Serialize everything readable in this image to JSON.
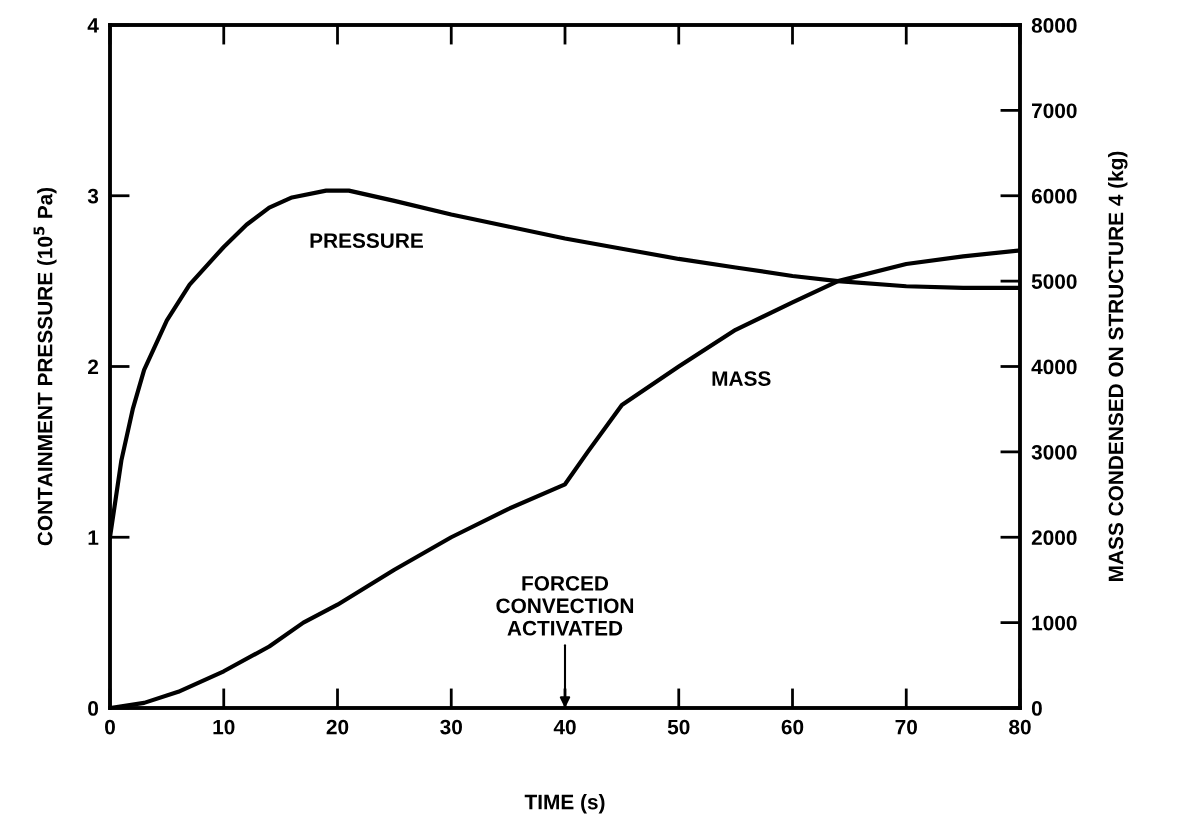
{
  "chart_data": {
    "type": "line",
    "xlabel": "TIME (s)",
    "ylabel": "CONTAINMENT PRESSURE (10$^{5}$ Pa)",
    "y2label": "MASS CONDENSED ON STRUCTURE 4 (kg)",
    "xlim": [
      0,
      80
    ],
    "xticks": [
      0,
      10,
      20,
      30,
      40,
      50,
      60,
      70,
      80
    ],
    "ylim": [
      0,
      4
    ],
    "yticks": [
      0,
      1,
      2,
      3,
      4
    ],
    "y2lim": [
      0,
      8000
    ],
    "y2ticks": [
      0,
      1000,
      2000,
      3000,
      4000,
      5000,
      6000,
      7000,
      8000
    ],
    "grid": false,
    "legend": false,
    "marker": "none",
    "line_style": "solid",
    "annotations": [
      "FORCED\nCONVECTION\nACTIVATED"
    ],
    "series": [
      {
        "name": "PRESSURE",
        "color": "#000000",
        "x": [
          0,
          1,
          2,
          3,
          5,
          7,
          10,
          12,
          14,
          16,
          19,
          21,
          25,
          30,
          35,
          40,
          45,
          50,
          55,
          60,
          64,
          70,
          75,
          80
        ],
        "values": [
          1.0,
          1.45,
          1.75,
          1.98,
          2.27,
          2.48,
          2.7,
          2.83,
          2.93,
          2.99,
          3.03,
          3.03,
          2.97,
          2.89,
          2.82,
          2.75,
          2.69,
          2.63,
          2.58,
          2.53,
          2.5,
          2.47,
          2.46,
          2.46
        ]
      },
      {
        "name": "MASS",
        "color": "#000000",
        "axis": "y2",
        "x": [
          0,
          3,
          6,
          10,
          14,
          17,
          20,
          25,
          30,
          35,
          40,
          42,
          45,
          50,
          55,
          60,
          64,
          70,
          75,
          80
        ],
        "values": [
          0,
          60,
          190,
          430,
          720,
          1000,
          1210,
          1620,
          2000,
          2330,
          2620,
          3000,
          3550,
          4000,
          4430,
          4750,
          5000,
          5200,
          5290,
          5360
        ]
      }
    ]
  }
}
